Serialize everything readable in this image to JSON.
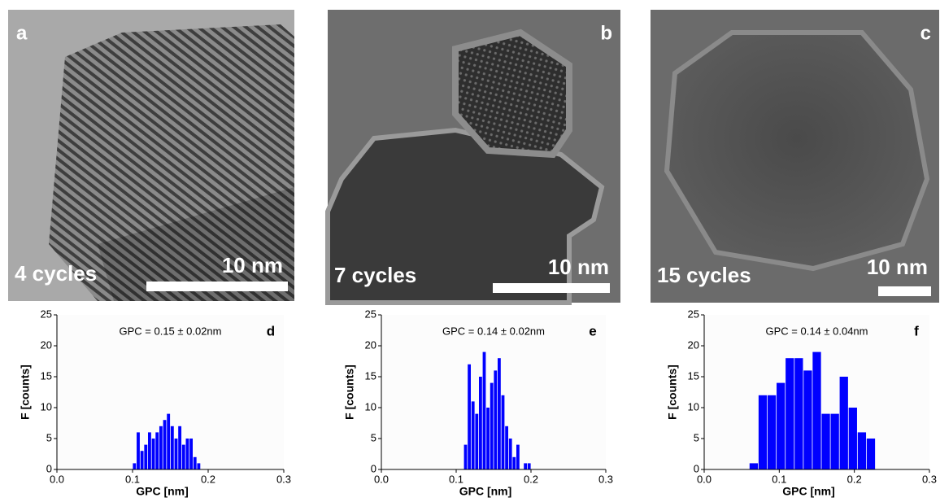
{
  "panels": [
    {
      "letter": "a",
      "caption": "4 cycles",
      "scale": "10 nm"
    },
    {
      "letter": "b",
      "caption": "7 cycles",
      "scale": "10 nm"
    },
    {
      "letter": "c",
      "caption": "15 cycles",
      "scale": "10 nm"
    }
  ],
  "chart_data": [
    {
      "type": "histogram",
      "letter": "d",
      "annotation": "GPC = 0.15 ± 0.02nm",
      "x_label": "GPC [nm]",
      "y_label": "F [counts]",
      "color": "#0000ff",
      "bins": [
        0.1,
        0.105,
        0.11,
        0.115,
        0.12,
        0.125,
        0.13,
        0.135,
        0.14,
        0.145,
        0.15,
        0.155,
        0.16,
        0.165,
        0.17,
        0.175,
        0.18,
        0.185,
        0.19
      ],
      "values": [
        1,
        6,
        3,
        4,
        6,
        5,
        6,
        7,
        8,
        9,
        7,
        5,
        7,
        4,
        5,
        5,
        2,
        1
      ],
      "xlim": [
        0,
        0.3
      ],
      "xticks": [
        {
          "value": 0,
          "label": "0.0"
        },
        0.1,
        0.2,
        0.3
      ],
      "ylim": [
        0,
        25
      ],
      "yticks": [
        0,
        5,
        10,
        15,
        20,
        25
      ]
    },
    {
      "type": "histogram",
      "letter": "e",
      "annotation": "GPC = 0.14 ± 0.02nm",
      "x_label": "GPC [nm]",
      "y_label": "F [counts]",
      "color": "#0000ff",
      "bins": [
        0.11,
        0.115,
        0.12,
        0.125,
        0.13,
        0.135,
        0.14,
        0.145,
        0.15,
        0.155,
        0.16,
        0.165,
        0.17,
        0.175,
        0.18,
        0.185,
        0.19,
        0.195,
        0.2
      ],
      "values": [
        4,
        17,
        11,
        9,
        15,
        19,
        10,
        14,
        16,
        18,
        12,
        7,
        5,
        2,
        4,
        0,
        1,
        1
      ],
      "xlim": [
        0,
        0.3
      ],
      "xticks": [
        {
          "value": 0,
          "label": "0.0"
        },
        0.1,
        0.2,
        0.3
      ],
      "ylim": [
        0,
        25
      ],
      "yticks": [
        0,
        5,
        10,
        15,
        20,
        25
      ]
    },
    {
      "type": "histogram",
      "letter": "f",
      "annotation": "GPC = 0.14 ± 0.04nm",
      "x_label": "GPC [nm]",
      "y_label": "F [counts]",
      "color": "#0000ff",
      "bins": [
        0.06,
        0.072,
        0.084,
        0.096,
        0.108,
        0.12,
        0.132,
        0.144,
        0.156,
        0.168,
        0.18,
        0.192,
        0.204,
        0.216,
        0.228
      ],
      "values": [
        1,
        12,
        12,
        14,
        18,
        18,
        16,
        19,
        9,
        9,
        15,
        10,
        6,
        5
      ],
      "xlim": [
        0,
        0.3
      ],
      "xticks": [
        {
          "value": 0,
          "label": "0.0"
        },
        0.1,
        0.2,
        0.3
      ],
      "ylim": [
        0,
        25
      ],
      "yticks": [
        0,
        5,
        10,
        15,
        20,
        25
      ]
    }
  ]
}
